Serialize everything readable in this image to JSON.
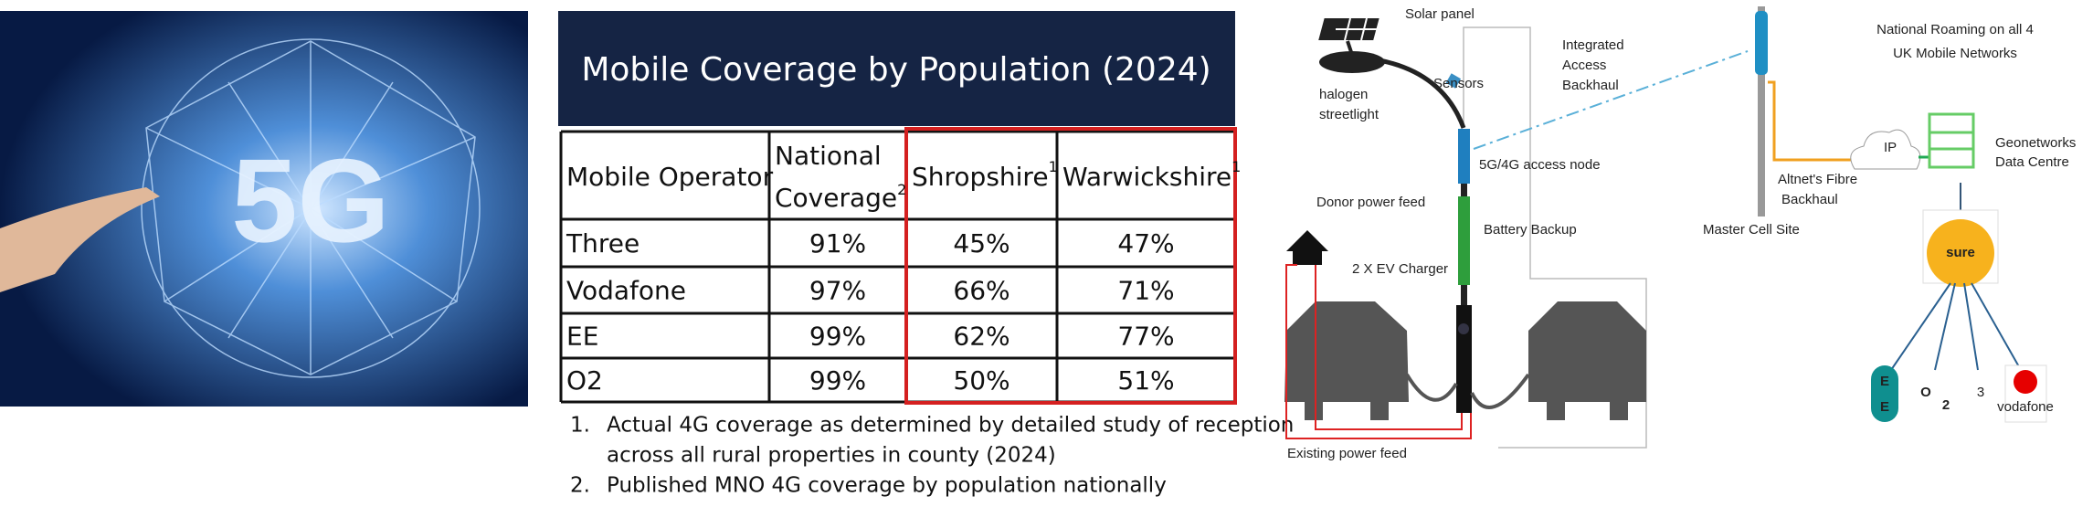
{
  "image": {
    "text": "5G"
  },
  "table": {
    "title": "Mobile Coverage by Population (2024)",
    "header": [
      {
        "text": "Mobile Operator"
      },
      {
        "text": "National Coverage",
        "note": "2"
      },
      {
        "text": "Shropshire",
        "note": "1"
      },
      {
        "text": "Warwickshire",
        "note": "1"
      }
    ],
    "rows": [
      [
        "Three",
        "91%",
        "45%",
        "47%"
      ],
      [
        "Vodafone",
        "97%",
        "66%",
        "71%"
      ],
      [
        "EE",
        "99%",
        "62%",
        "77%"
      ],
      [
        "O2",
        "99%",
        "50%",
        "51%"
      ]
    ],
    "footnotes": [
      {
        "number": "1.",
        "lines": [
          "Actual 4G coverage as determined by detailed study of reception",
          "across all rural properties in county (2024)"
        ]
      },
      {
        "number": "2.",
        "lines": [
          "Published MNO 4G coverage by population nationally"
        ]
      }
    ]
  },
  "diagram": {
    "labels": {
      "solar": "Solar panel",
      "halogen": [
        "halogen",
        "streetlight"
      ],
      "sensors": "Sensors",
      "iab": [
        "Integrated",
        "Access",
        "Backhaul"
      ],
      "node": "5G/4G access node",
      "donor": "Donor power feed",
      "battery": "Battery Backup",
      "ev": "2 X EV Charger",
      "existing": "Existing power feed",
      "master": "Master Cell Site",
      "fibre": [
        "Altnet's Fibre",
        "Backhaul"
      ],
      "ip": "IP",
      "roaming": [
        "National Roaming on all 4",
        "UK Mobile Networks"
      ],
      "datacentre": [
        "Geonetworks",
        "Data Centre"
      ],
      "sure": "sure",
      "operators": [
        "E",
        "E",
        "O",
        "2",
        "3",
        "vodafone"
      ]
    }
  }
}
